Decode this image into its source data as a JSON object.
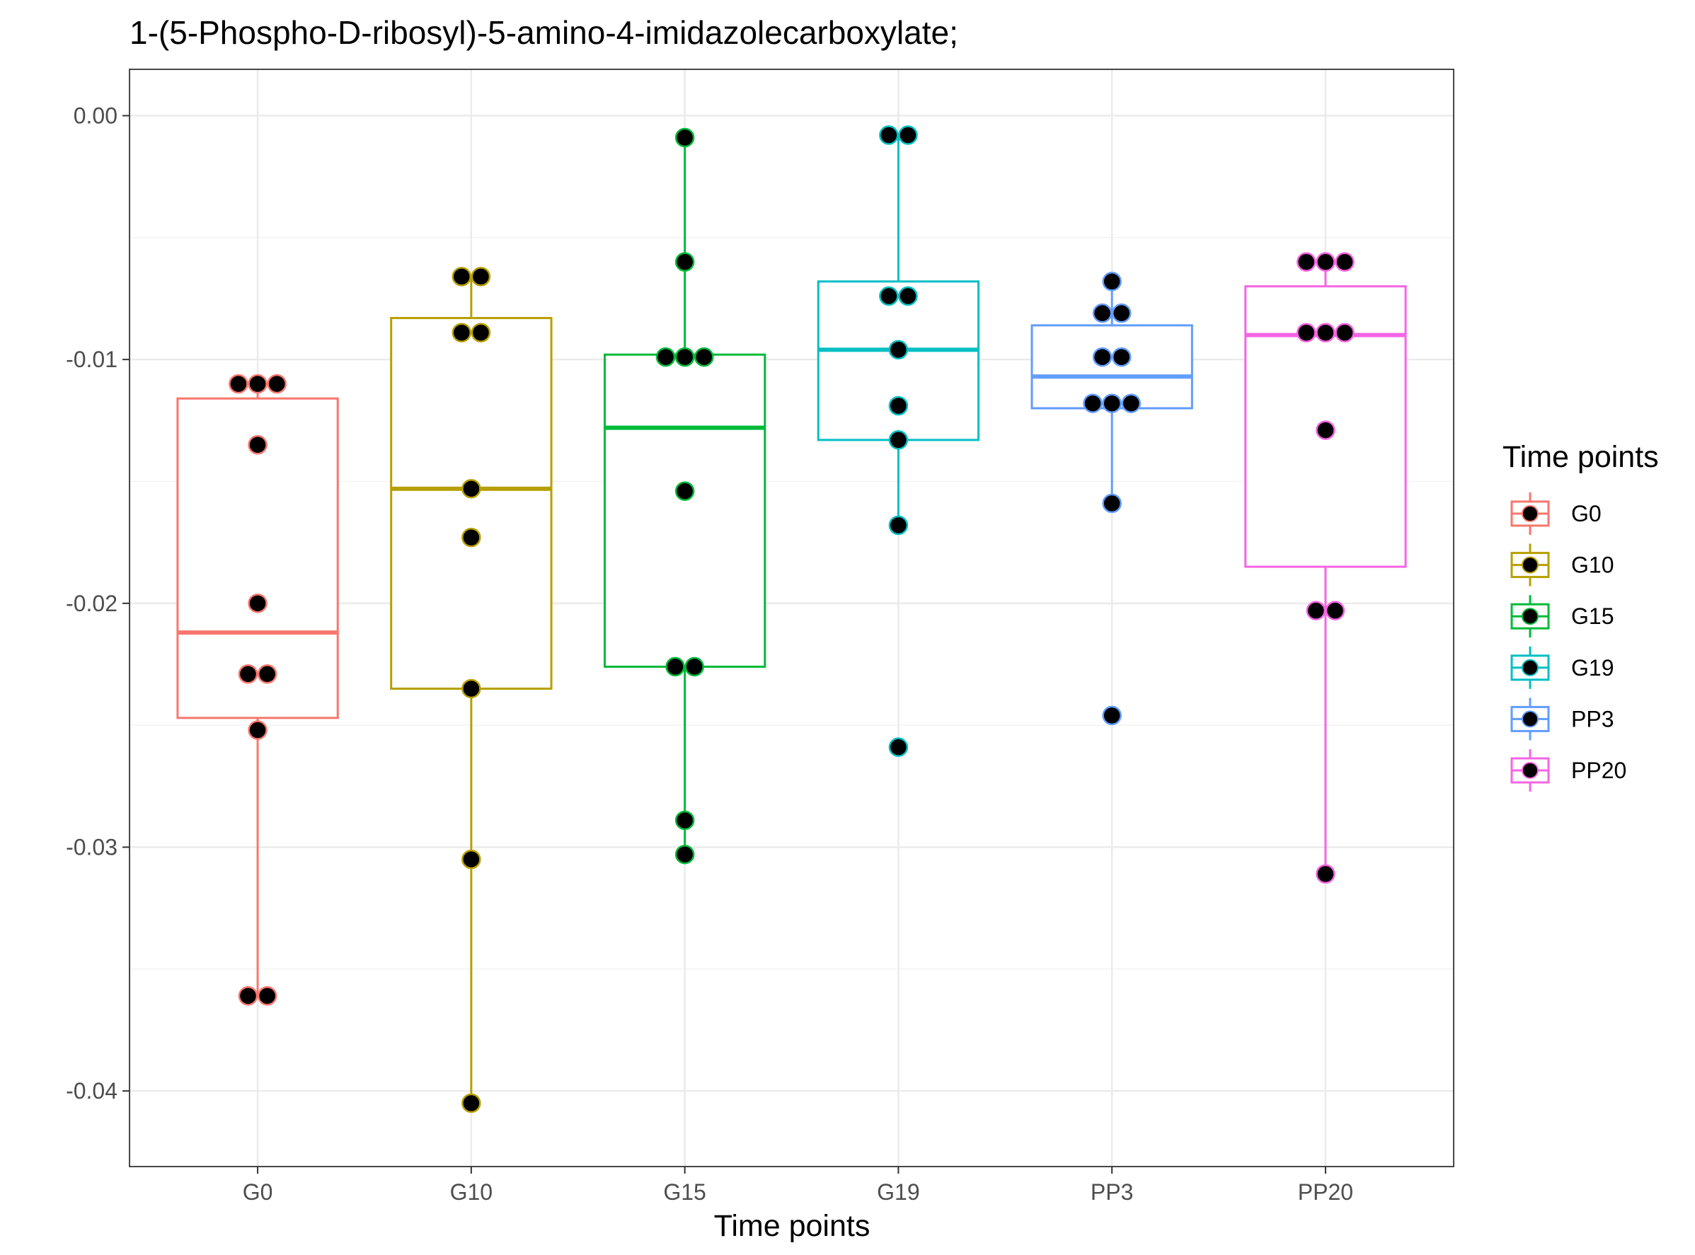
{
  "chart_data": {
    "type": "box",
    "title": "1-(5-Phospho-D-ribosyl)-5-amino-4-imidazolecarboxylate;",
    "xlabel": "Time points",
    "ylabel": "",
    "categories": [
      "G0",
      "G10",
      "G15",
      "G19",
      "PP3",
      "PP20"
    ],
    "y_ticks": [
      "0.00",
      "-0.01",
      "-0.02",
      "-0.03",
      "-0.04"
    ],
    "y_tick_values": [
      0.0,
      -0.01,
      -0.02,
      -0.03,
      -0.04
    ],
    "ylim": [
      -0.0431,
      0.0019
    ],
    "grid": true,
    "legend": {
      "title": "Time points",
      "position": "right"
    },
    "colors": {
      "G0": "#F8766D",
      "G10": "#B79F00",
      "G15": "#00BA38",
      "G19": "#00BFC4",
      "PP3": "#619CFF",
      "PP20": "#F564E3"
    },
    "point_fill": "#000000",
    "boxes": [
      {
        "name": "G0",
        "whisker_low": -0.0361,
        "q1": -0.0247,
        "median": -0.0212,
        "q3": -0.0116,
        "whisker_high": -0.011
      },
      {
        "name": "G10",
        "whisker_low": -0.0405,
        "q1": -0.0235,
        "median": -0.0153,
        "q3": -0.0083,
        "whisker_high": -0.0066
      },
      {
        "name": "G15",
        "whisker_low": -0.0303,
        "q1": -0.0226,
        "median": -0.0128,
        "q3": -0.0098,
        "whisker_high": -0.0009
      },
      {
        "name": "G19",
        "whisker_low": -0.0168,
        "q1": -0.0133,
        "median": -0.0096,
        "q3": -0.0068,
        "whisker_high": -0.0008
      },
      {
        "name": "PP3",
        "whisker_low": -0.0159,
        "q1": -0.012,
        "median": -0.0107,
        "q3": -0.0086,
        "whisker_high": -0.0068
      },
      {
        "name": "PP20",
        "whisker_low": -0.0311,
        "q1": -0.0185,
        "median": -0.009,
        "q3": -0.007,
        "whisker_high": -0.006
      }
    ],
    "outliers": [
      {
        "name": "G19",
        "y": -0.0259
      },
      {
        "name": "PP3",
        "y": -0.0246
      }
    ],
    "points": [
      {
        "name": "G0",
        "x_offset": -0.09,
        "y": -0.011
      },
      {
        "name": "G0",
        "x_offset": 0.0,
        "y": -0.011
      },
      {
        "name": "G0",
        "x_offset": 0.09,
        "y": -0.011
      },
      {
        "name": "G0",
        "x_offset": 0.0,
        "y": -0.0135
      },
      {
        "name": "G0",
        "x_offset": 0.0,
        "y": -0.02
      },
      {
        "name": "G0",
        "x_offset": -0.045,
        "y": -0.0229
      },
      {
        "name": "G0",
        "x_offset": 0.045,
        "y": -0.0229
      },
      {
        "name": "G0",
        "x_offset": 0.0,
        "y": -0.0252
      },
      {
        "name": "G0",
        "x_offset": -0.045,
        "y": -0.0361
      },
      {
        "name": "G0",
        "x_offset": 0.045,
        "y": -0.0361
      },
      {
        "name": "G10",
        "x_offset": -0.045,
        "y": -0.0066
      },
      {
        "name": "G10",
        "x_offset": 0.045,
        "y": -0.0066
      },
      {
        "name": "G10",
        "x_offset": -0.045,
        "y": -0.0089
      },
      {
        "name": "G10",
        "x_offset": 0.045,
        "y": -0.0089
      },
      {
        "name": "G10",
        "x_offset": 0.0,
        "y": -0.0153
      },
      {
        "name": "G10",
        "x_offset": 0.0,
        "y": -0.0173
      },
      {
        "name": "G10",
        "x_offset": 0.0,
        "y": -0.0235
      },
      {
        "name": "G10",
        "x_offset": 0.0,
        "y": -0.0305
      },
      {
        "name": "G10",
        "x_offset": 0.0,
        "y": -0.0405
      },
      {
        "name": "G15",
        "x_offset": 0.0,
        "y": -0.0009
      },
      {
        "name": "G15",
        "x_offset": 0.0,
        "y": -0.006
      },
      {
        "name": "G15",
        "x_offset": -0.09,
        "y": -0.0099
      },
      {
        "name": "G15",
        "x_offset": 0.0,
        "y": -0.0099
      },
      {
        "name": "G15",
        "x_offset": 0.09,
        "y": -0.0099
      },
      {
        "name": "G15",
        "x_offset": 0.0,
        "y": -0.0154
      },
      {
        "name": "G15",
        "x_offset": -0.045,
        "y": -0.0226
      },
      {
        "name": "G15",
        "x_offset": 0.045,
        "y": -0.0226
      },
      {
        "name": "G15",
        "x_offset": 0.0,
        "y": -0.0289
      },
      {
        "name": "G15",
        "x_offset": 0.0,
        "y": -0.0303
      },
      {
        "name": "G19",
        "x_offset": -0.045,
        "y": -0.0008
      },
      {
        "name": "G19",
        "x_offset": 0.045,
        "y": -0.0008
      },
      {
        "name": "G19",
        "x_offset": -0.045,
        "y": -0.0074
      },
      {
        "name": "G19",
        "x_offset": 0.045,
        "y": -0.0074
      },
      {
        "name": "G19",
        "x_offset": 0.0,
        "y": -0.0096
      },
      {
        "name": "G19",
        "x_offset": 0.0,
        "y": -0.0119
      },
      {
        "name": "G19",
        "x_offset": 0.0,
        "y": -0.0133
      },
      {
        "name": "G19",
        "x_offset": 0.0,
        "y": -0.0168
      },
      {
        "name": "G19",
        "x_offset": 0.0,
        "y": -0.0259
      },
      {
        "name": "PP3",
        "x_offset": 0.0,
        "y": -0.0068
      },
      {
        "name": "PP3",
        "x_offset": -0.045,
        "y": -0.0081
      },
      {
        "name": "PP3",
        "x_offset": 0.045,
        "y": -0.0081
      },
      {
        "name": "PP3",
        "x_offset": -0.045,
        "y": -0.0099
      },
      {
        "name": "PP3",
        "x_offset": 0.045,
        "y": -0.0099
      },
      {
        "name": "PP3",
        "x_offset": -0.09,
        "y": -0.0118
      },
      {
        "name": "PP3",
        "x_offset": 0.0,
        "y": -0.0118
      },
      {
        "name": "PP3",
        "x_offset": 0.09,
        "y": -0.0118
      },
      {
        "name": "PP3",
        "x_offset": 0.0,
        "y": -0.0159
      },
      {
        "name": "PP3",
        "x_offset": 0.0,
        "y": -0.0246
      },
      {
        "name": "PP20",
        "x_offset": -0.09,
        "y": -0.006
      },
      {
        "name": "PP20",
        "x_offset": 0.0,
        "y": -0.006
      },
      {
        "name": "PP20",
        "x_offset": 0.09,
        "y": -0.006
      },
      {
        "name": "PP20",
        "x_offset": -0.09,
        "y": -0.0089
      },
      {
        "name": "PP20",
        "x_offset": 0.0,
        "y": -0.0089
      },
      {
        "name": "PP20",
        "x_offset": 0.09,
        "y": -0.0089
      },
      {
        "name": "PP20",
        "x_offset": 0.0,
        "y": -0.0129
      },
      {
        "name": "PP20",
        "x_offset": -0.045,
        "y": -0.0203
      },
      {
        "name": "PP20",
        "x_offset": 0.045,
        "y": -0.0203
      },
      {
        "name": "PP20",
        "x_offset": 0.0,
        "y": -0.0311
      }
    ]
  }
}
